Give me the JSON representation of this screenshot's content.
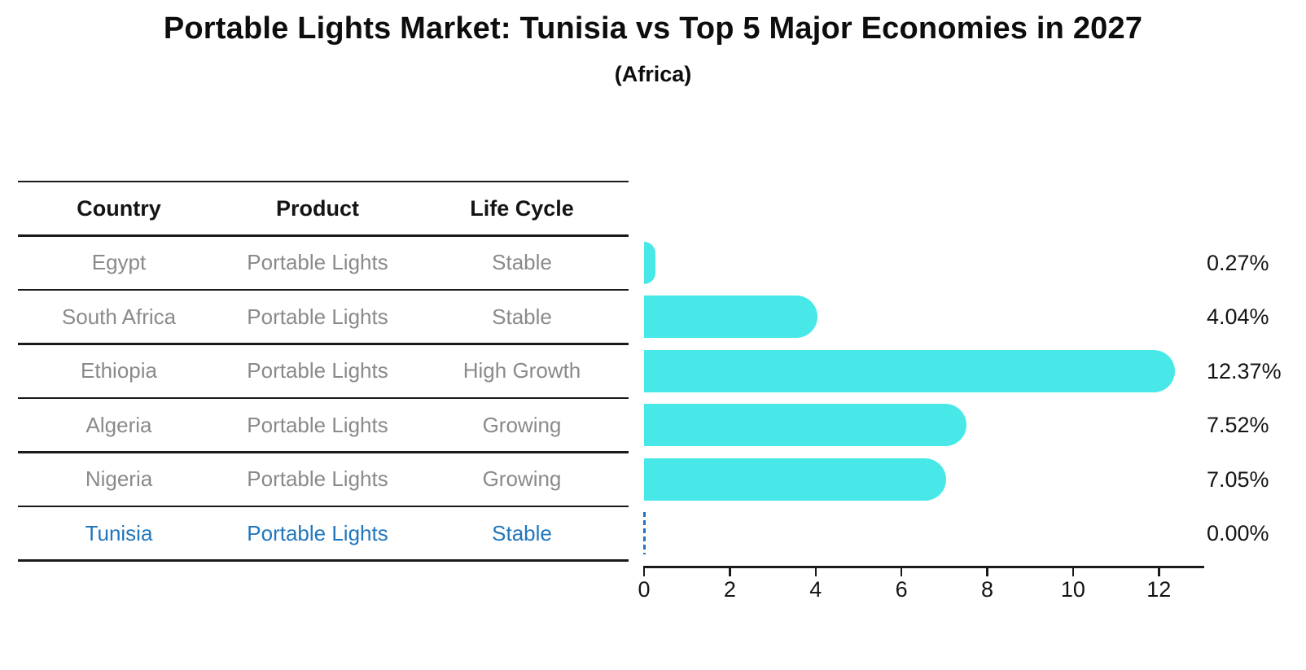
{
  "title": "Portable Lights Market: Tunisia vs Top 5 Major Economies in 2027",
  "subtitle": "(Africa)",
  "colors": {
    "bar": "#48E8E8",
    "row_text": "#8A8A8A",
    "highlight_text": "#2176BD",
    "header_text": "#141414",
    "axis": "#1A1A1A"
  },
  "table": {
    "headers": [
      "Country",
      "Product",
      "Life Cycle"
    ],
    "rows": [
      {
        "country": "Egypt",
        "product": "Portable Lights",
        "life_cycle": "Stable",
        "highlighted": false
      },
      {
        "country": "South Africa",
        "product": "Portable Lights",
        "life_cycle": "Stable",
        "highlighted": false
      },
      {
        "country": "Ethiopia",
        "product": "Portable Lights",
        "life_cycle": "High Growth",
        "highlighted": false
      },
      {
        "country": "Algeria",
        "product": "Portable Lights",
        "life_cycle": "Growing",
        "highlighted": false
      },
      {
        "country": "Nigeria",
        "product": "Portable Lights",
        "life_cycle": "Growing",
        "highlighted": false
      },
      {
        "country": "Tunisia",
        "product": "Portable Lights",
        "life_cycle": "Stable",
        "highlighted": true
      }
    ]
  },
  "chart_data": {
    "type": "bar",
    "orientation": "horizontal",
    "title": "Portable Lights Market: Tunisia vs Top 5 Major Economies in 2027",
    "subtitle": "(Africa)",
    "categories": [
      "Egypt",
      "South Africa",
      "Ethiopia",
      "Algeria",
      "Nigeria",
      "Tunisia"
    ],
    "values": [
      0.27,
      4.04,
      12.37,
      7.52,
      7.05,
      0.0
    ],
    "value_labels": [
      "0.27%",
      "4.04%",
      "12.37%",
      "7.52%",
      "7.05%",
      "0.00%"
    ],
    "xlabel": "",
    "ylabel": "",
    "xlim": [
      0,
      13
    ],
    "xticks": [
      0,
      2,
      4,
      6,
      8,
      10,
      12
    ],
    "grid": false,
    "legend": false,
    "bar_color": "#48E8E8",
    "highlight_category": "Tunisia",
    "highlight_marker": "dashed zero line"
  }
}
